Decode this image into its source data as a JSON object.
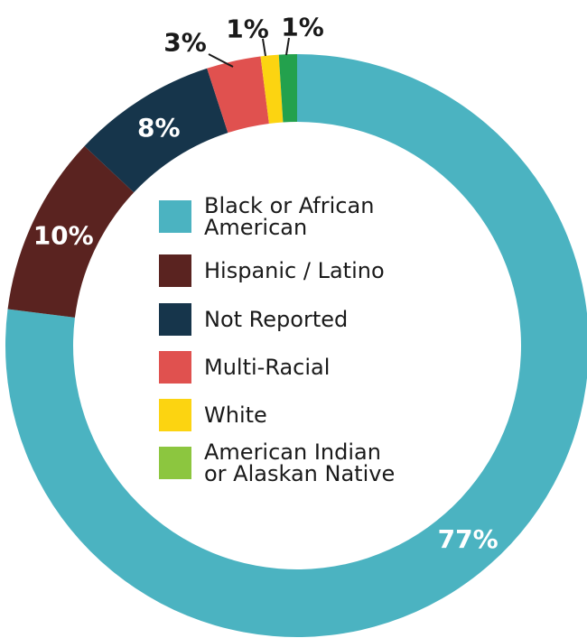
{
  "chart_data": {
    "type": "pie",
    "donut": true,
    "unit": "%",
    "start": "12 o'clock",
    "direction": "clockwise",
    "slices": [
      {
        "name": "Black or African American",
        "value": 77,
        "label": "77%",
        "color": "#4bb3c1",
        "label_color": "#ffffff"
      },
      {
        "name": "Hispanic / Latino",
        "value": 10,
        "label": "10%",
        "color": "#5a2320",
        "label_color": "#ffffff"
      },
      {
        "name": "Not Reported",
        "value": 8,
        "label": "8%",
        "color": "#16354b",
        "label_color": "#ffffff"
      },
      {
        "name": "Multi-Racial",
        "value": 3,
        "label": "3%",
        "color": "#e0514f",
        "label_color": "#1a1a1a"
      },
      {
        "name": "White",
        "value": 1,
        "label": "1%",
        "color": "#fcd411",
        "label_color": "#1a1a1a"
      },
      {
        "name": "American Indian or Alaskan Native",
        "value": 1,
        "label": "1%",
        "color": "#23a14d",
        "label_color": "#1a1a1a"
      }
    ],
    "legend": {
      "placement": "center",
      "items": [
        {
          "lines": [
            "Black or African",
            "American"
          ],
          "color": "#4bb3c1"
        },
        {
          "lines": [
            "Hispanic / Latino"
          ],
          "color": "#5a2320"
        },
        {
          "lines": [
            "Not Reported"
          ],
          "color": "#16354b"
        },
        {
          "lines": [
            "Multi-Racial"
          ],
          "color": "#e0514f"
        },
        {
          "lines": [
            "White"
          ],
          "color": "#fcd411"
        },
        {
          "lines": [
            "American Indian",
            "or Alaskan Native"
          ],
          "color": "#8cc63f"
        }
      ]
    }
  }
}
